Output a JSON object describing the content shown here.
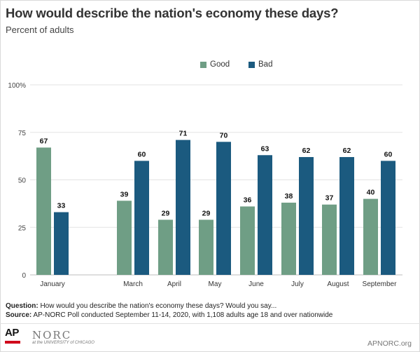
{
  "title": "How would describe the nation's economy these days?",
  "subtitle": "Percent of adults",
  "chart_data": {
    "type": "bar",
    "title": "How would describe the nation's economy these days?",
    "subtitle": "Percent of adults",
    "categories": [
      "January",
      "March",
      "April",
      "May",
      "June",
      "July",
      "August",
      "September"
    ],
    "series": [
      {
        "name": "Good",
        "color": "#6f9e85",
        "values": [
          67,
          39,
          29,
          29,
          36,
          38,
          37,
          40
        ]
      },
      {
        "name": "Bad",
        "color": "#1b5a7f",
        "values": [
          33,
          60,
          71,
          70,
          63,
          62,
          62,
          60
        ]
      }
    ],
    "yticks": [
      "0",
      "25",
      "50",
      "75",
      "100%"
    ],
    "ylim": [
      0,
      100
    ],
    "xlabel": "",
    "ylabel": "",
    "legend_position": "top-center"
  },
  "footer": {
    "question_label": "Question:",
    "question_text": "How would you describe the nation's economy these days? Would you say...",
    "source_label": "Source:",
    "source_text": "AP-NORC Poll conducted September 11-14, 2020, with 1,108 adults age 18 and over nationwide"
  },
  "branding": {
    "ap": "AP",
    "norc": "NORC",
    "norc_sub": "at the UNIVERSITY of CHICAGO",
    "site": "APNORC.org"
  }
}
